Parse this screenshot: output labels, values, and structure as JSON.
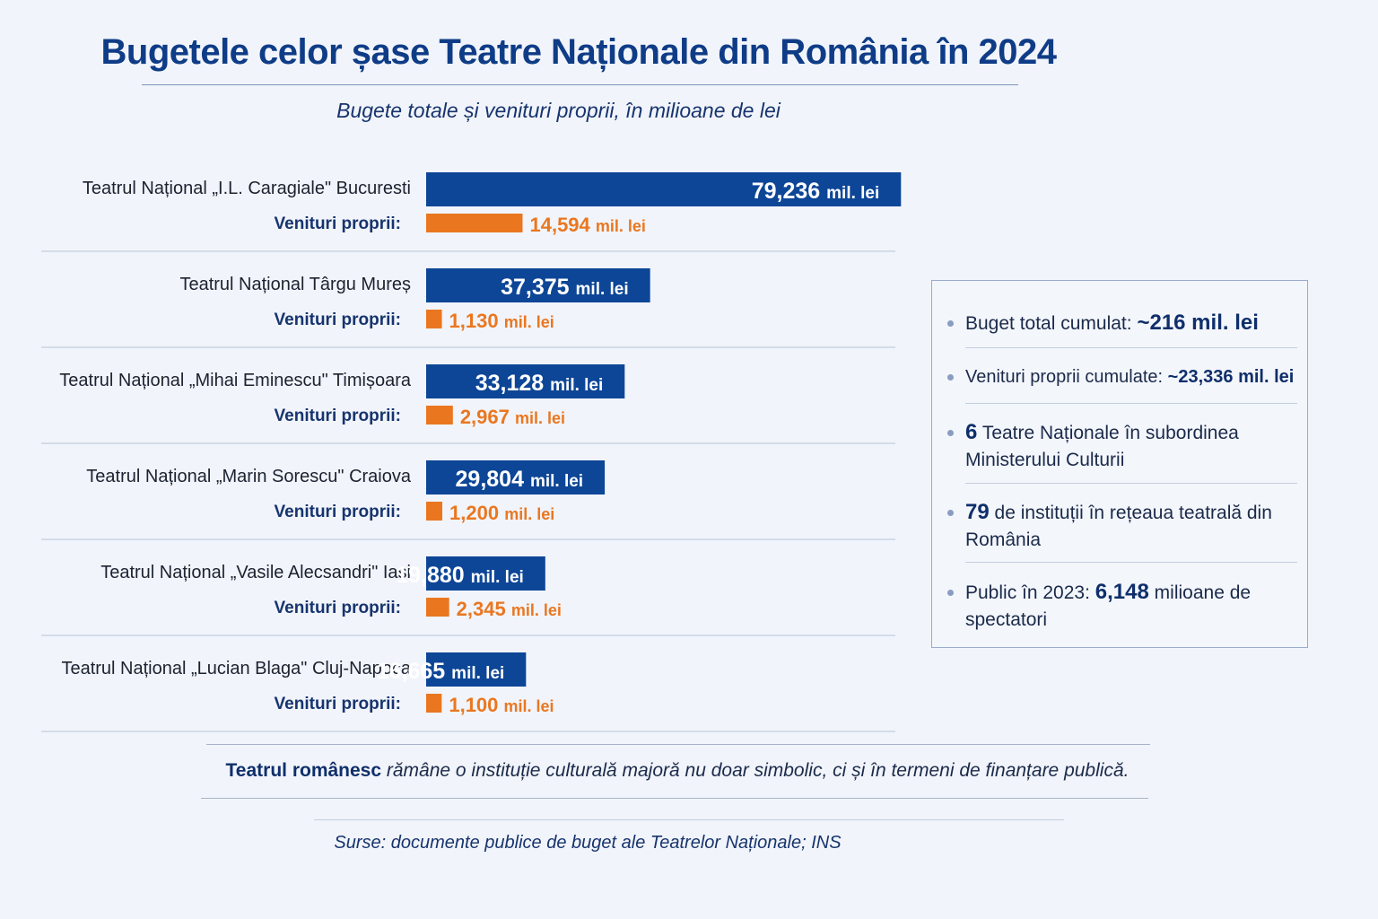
{
  "chart_data": {
    "type": "bar",
    "title": "Bugetele celor șase Teatre Naționale din România în 2024",
    "subtitle": "Bugete totale și venituri proprii, în milioane de lei",
    "unit_label": "mil. lei",
    "own_revenue_label": "Venituri proprii:",
    "categories": [
      "Teatrul Național „I.L. Caragiale\" Bucuresti",
      "Teatrul Național Târgu Mureș",
      "Teatrul Național „Mihai Eminescu\" Timișoara",
      "Teatrul Național „Marin Sorescu\" Craiova",
      "Teatrul Național „Vasile Alecsandri\" Iași",
      "Teatrul Național „Lucian Blaga\" Cluj-Napoca"
    ],
    "series": [
      {
        "key": "total",
        "values": [
          79.236,
          37.375,
          33.128,
          29.804,
          19.88,
          16.665
        ],
        "labels": [
          "79,236",
          "37,375",
          "33,128",
          "29,804",
          "19,880",
          "16,665"
        ],
        "color": "#0d4697"
      },
      {
        "key": "own",
        "name": "Venituri proprii:",
        "values": [
          14.594,
          1.13,
          2.967,
          1.2,
          2.345,
          1.1
        ],
        "labels": [
          "14,594",
          "1,130",
          "2,967",
          "1,200",
          "2,345",
          "1,100"
        ],
        "color": "#ea7720"
      }
    ]
  },
  "summary": [
    {
      "text": "Buget total cumulat: ",
      "bold": "~216 mil. lei",
      "after": "",
      "bold_first": false
    },
    {
      "text": "Venituri proprii cumulate: ",
      "bold": "~23,336 mil. lei",
      "after": "",
      "bold_first": false
    },
    {
      "text": "",
      "bold": "6",
      "after": " Teatre Naționale în subordinea Ministerului Culturii",
      "bold_first": true
    },
    {
      "text": "",
      "bold": "79",
      "after": " de instituții în rețeaua teatrală din România",
      "bold_first": true
    },
    {
      "text": "Public în 2023: ",
      "bold": "6,148",
      "after": " milioane de spectatori",
      "bold_first": false
    }
  ],
  "conclusion": {
    "bold": "Teatrul românesc",
    "rest": " rămâne o instituție culturală majoră nu doar simbolic, ci și în termeni de finanțare publică."
  },
  "source": "Surse: documente publice de buget ale Teatrelor Naționale; INS",
  "colors": {
    "title": "#0f3c87",
    "bar_total": "#0d4697",
    "bar_own": "#ea7720",
    "text_dark": "#1c2230",
    "label_blue": "#17346e"
  }
}
